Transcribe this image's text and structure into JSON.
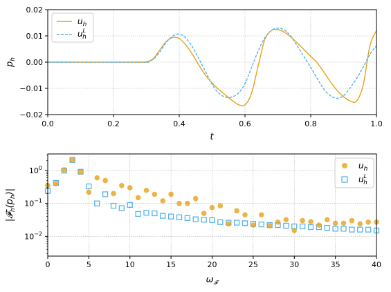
{
  "chart_data": [
    {
      "type": "line",
      "xlabel": "t",
      "ylabel": "p_h",
      "xlim": [
        0.0,
        1.0
      ],
      "ylim": [
        -0.02,
        0.02
      ],
      "x_ticks": [
        "0.0",
        "0.2",
        "0.4",
        "0.6",
        "0.8",
        "1.0"
      ],
      "y_ticks": [
        "0.02",
        "0.01",
        "0.00",
        "−0.01",
        "−0.02"
      ],
      "grid": true,
      "legend_position": "top-left",
      "series": [
        {
          "name": "u_h",
          "style": "solid",
          "color": "#E6A117",
          "x": [
            0,
            0.28,
            0.3,
            0.32,
            0.34,
            0.36,
            0.38,
            0.4,
            0.42,
            0.44,
            0.46,
            0.48,
            0.5,
            0.52,
            0.54,
            0.56,
            0.58,
            0.6,
            0.62,
            0.64,
            0.66,
            0.68,
            0.7,
            0.72,
            0.74,
            0.76,
            0.78,
            0.8,
            0.82,
            0.84,
            0.86,
            0.88,
            0.9,
            0.92,
            0.94,
            0.96,
            0.98,
            1.0
          ],
          "y": [
            0,
            0,
            0.0001,
            0.0012,
            0.0045,
            0.0078,
            0.0094,
            0.009,
            0.0066,
            0.003,
            -0.0012,
            -0.005,
            -0.008,
            -0.0104,
            -0.0125,
            -0.0145,
            -0.0162,
            -0.0163,
            -0.0118,
            -0.0015,
            0.0085,
            0.012,
            0.0124,
            0.0114,
            0.0095,
            0.0072,
            0.0047,
            0.0022,
            -0.0003,
            -0.0038,
            -0.0075,
            -0.0108,
            -0.0132,
            -0.0148,
            -0.0148,
            -0.0085,
            0.0062,
            0.012
          ]
        },
        {
          "name": "u_h^L",
          "style": "dashed",
          "color": "#56B4E9",
          "x": [
            0,
            0.28,
            0.3,
            0.32,
            0.34,
            0.36,
            0.38,
            0.4,
            0.42,
            0.44,
            0.46,
            0.48,
            0.5,
            0.52,
            0.54,
            0.56,
            0.58,
            0.6,
            0.62,
            0.64,
            0.66,
            0.68,
            0.7,
            0.72,
            0.74,
            0.76,
            0.78,
            0.8,
            0.82,
            0.84,
            0.86,
            0.88,
            0.9,
            0.92,
            0.94,
            0.96,
            0.98,
            1.0
          ],
          "y": [
            0,
            0,
            0.0001,
            0.001,
            0.0037,
            0.0075,
            0.0099,
            0.0107,
            0.0092,
            0.0058,
            0.0012,
            -0.0036,
            -0.0085,
            -0.0118,
            -0.0133,
            -0.0133,
            -0.0118,
            -0.0082,
            -0.002,
            0.0042,
            0.0092,
            0.012,
            0.013,
            0.0122,
            0.0098,
            0.006,
            0.002,
            -0.002,
            -0.0063,
            -0.0103,
            -0.0128,
            -0.0138,
            -0.0128,
            -0.0098,
            -0.0062,
            -0.0018,
            0.003,
            0.0062
          ]
        }
      ]
    },
    {
      "type": "scatter",
      "xlabel": "ω_F",
      "ylabel": "|F_h(p_h)|",
      "xlim": [
        0,
        40
      ],
      "ylim": [
        0.0025,
        3.2
      ],
      "y_scale": "log",
      "x_ticks": [
        "0",
        "5",
        "10",
        "15",
        "20",
        "25",
        "30",
        "35",
        "40"
      ],
      "y_ticks": [
        "10^0",
        "10^-1",
        "10^-2"
      ],
      "grid": true,
      "legend_position": "top-right",
      "series": [
        {
          "name": "u_h",
          "marker": "filled-circle",
          "color": "#E6A117",
          "x": [
            0,
            1,
            2,
            3,
            4,
            5,
            6,
            7,
            8,
            9,
            10,
            11,
            12,
            13,
            14,
            15,
            16,
            17,
            18,
            19,
            20,
            21,
            22,
            23,
            24,
            25,
            26,
            27,
            28,
            29,
            30,
            31,
            32,
            33,
            34,
            35,
            36,
            37,
            38,
            39,
            40
          ],
          "y": [
            0.35,
            0.4,
            1.05,
            2.1,
            0.9,
            0.22,
            0.6,
            0.5,
            0.2,
            0.35,
            0.3,
            0.15,
            0.25,
            0.19,
            0.12,
            0.19,
            0.1,
            0.1,
            0.14,
            0.05,
            0.075,
            0.085,
            0.024,
            0.06,
            0.045,
            0.022,
            0.045,
            0.021,
            0.027,
            0.032,
            0.015,
            0.03,
            0.028,
            0.022,
            0.032,
            0.025,
            0.025,
            0.03,
            0.024,
            0.027,
            0.027
          ]
        },
        {
          "name": "u_h^L",
          "marker": "open-square",
          "color": "#56B4E9",
          "x": [
            0,
            1,
            2,
            3,
            4,
            5,
            6,
            7,
            8,
            9,
            10,
            11,
            12,
            13,
            14,
            15,
            16,
            17,
            18,
            19,
            20,
            21,
            22,
            23,
            24,
            25,
            26,
            27,
            28,
            29,
            30,
            31,
            32,
            33,
            34,
            35,
            36,
            37,
            38,
            39,
            40
          ],
          "y": [
            0.24,
            0.42,
            1.0,
            2.1,
            0.92,
            0.33,
            0.1,
            0.19,
            0.085,
            0.072,
            0.09,
            0.048,
            0.052,
            0.05,
            0.042,
            0.04,
            0.038,
            0.036,
            0.033,
            0.032,
            0.031,
            0.027,
            0.026,
            0.026,
            0.025,
            0.024,
            0.023,
            0.022,
            0.022,
            0.021,
            0.02,
            0.02,
            0.019,
            0.019,
            0.018,
            0.017,
            0.017,
            0.016,
            0.016,
            0.016,
            0.015
          ]
        }
      ]
    }
  ]
}
